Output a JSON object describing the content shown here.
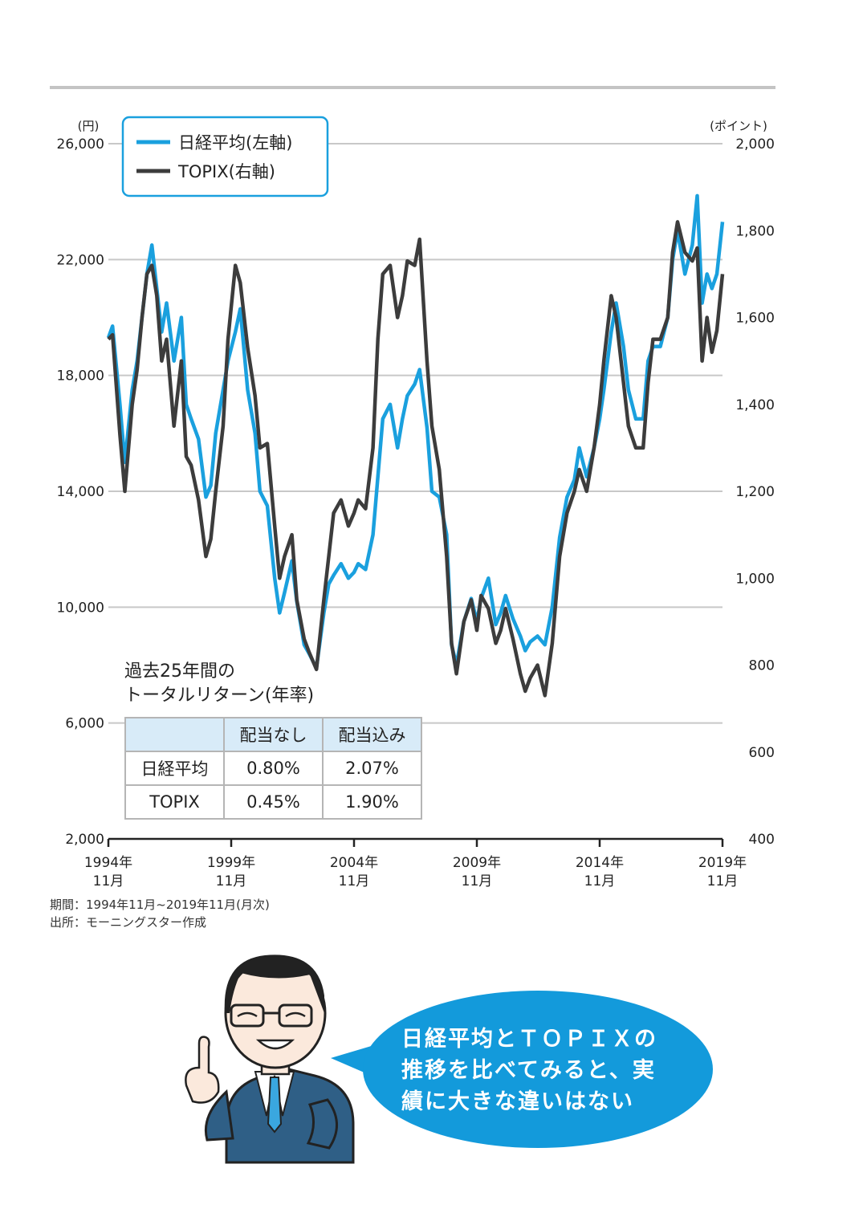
{
  "chart_data": {
    "type": "line",
    "left_axis": {
      "unit": "(円)",
      "ylim": [
        2000,
        26000
      ],
      "ticks": [
        "2,000",
        "6,000",
        "10,000",
        "14,000",
        "18,000",
        "22,000",
        "26,000"
      ],
      "tick_values": [
        2000,
        6000,
        10000,
        14000,
        18000,
        22000,
        26000
      ]
    },
    "right_axis": {
      "unit": "(ポイント)",
      "ylim": [
        400,
        2000
      ],
      "ticks": [
        "400",
        "600",
        "800",
        "1,000",
        "1,200",
        "1,400",
        "1,600",
        "1,800",
        "2,000"
      ],
      "tick_values": [
        400,
        600,
        800,
        1000,
        1200,
        1400,
        1600,
        1800,
        2000
      ]
    },
    "x_ticks": [
      {
        "year": "1994年",
        "month": "11月",
        "x": 1994.83
      },
      {
        "year": "1999年",
        "month": "11月",
        "x": 1999.83
      },
      {
        "year": "2004年",
        "month": "11月",
        "x": 2004.83
      },
      {
        "year": "2009年",
        "month": "11月",
        "x": 2009.83
      },
      {
        "year": "2014年",
        "month": "11月",
        "x": 2014.83
      },
      {
        "year": "2019年",
        "month": "11月",
        "x": 2019.83
      }
    ],
    "xlim": [
      1994.83,
      2019.83
    ],
    "grid": true,
    "legend_placement": "top-left",
    "series": [
      {
        "name": "日経平均(左軸)",
        "axis": "left",
        "color": "#1aa0de",
        "points": [
          [
            1994.83,
            19300
          ],
          [
            1995.0,
            19700
          ],
          [
            1995.3,
            17000
          ],
          [
            1995.5,
            15000
          ],
          [
            1995.8,
            17500
          ],
          [
            1996.0,
            18500
          ],
          [
            1996.2,
            20000
          ],
          [
            1996.4,
            21500
          ],
          [
            1996.6,
            22500
          ],
          [
            1996.8,
            21000
          ],
          [
            1997.0,
            19500
          ],
          [
            1997.2,
            20500
          ],
          [
            1997.5,
            18500
          ],
          [
            1997.8,
            20000
          ],
          [
            1998.0,
            17000
          ],
          [
            1998.2,
            16500
          ],
          [
            1998.5,
            15800
          ],
          [
            1998.8,
            13800
          ],
          [
            1999.0,
            14200
          ],
          [
            1999.2,
            16000
          ],
          [
            1999.5,
            17500
          ],
          [
            1999.7,
            18500
          ],
          [
            2000.0,
            19500
          ],
          [
            2000.2,
            20300
          ],
          [
            2000.5,
            17500
          ],
          [
            2000.8,
            16000
          ],
          [
            2001.0,
            14000
          ],
          [
            2001.3,
            13500
          ],
          [
            2001.6,
            11000
          ],
          [
            2001.8,
            9800
          ],
          [
            2002.0,
            10500
          ],
          [
            2002.3,
            11600
          ],
          [
            2002.5,
            10200
          ],
          [
            2002.8,
            8700
          ],
          [
            2003.0,
            8400
          ],
          [
            2003.3,
            7900
          ],
          [
            2003.6,
            9800
          ],
          [
            2003.8,
            10800
          ],
          [
            2004.0,
            11100
          ],
          [
            2004.3,
            11500
          ],
          [
            2004.6,
            11000
          ],
          [
            2004.83,
            11200
          ],
          [
            2005.0,
            11500
          ],
          [
            2005.3,
            11300
          ],
          [
            2005.6,
            12500
          ],
          [
            2005.8,
            14500
          ],
          [
            2006.0,
            16500
          ],
          [
            2006.3,
            17000
          ],
          [
            2006.6,
            15500
          ],
          [
            2006.8,
            16500
          ],
          [
            2007.0,
            17300
          ],
          [
            2007.3,
            17700
          ],
          [
            2007.5,
            18200
          ],
          [
            2007.8,
            16200
          ],
          [
            2008.0,
            14000
          ],
          [
            2008.3,
            13800
          ],
          [
            2008.6,
            12500
          ],
          [
            2008.8,
            8700
          ],
          [
            2009.0,
            8000
          ],
          [
            2009.3,
            9500
          ],
          [
            2009.6,
            10300
          ],
          [
            2009.83,
            9500
          ],
          [
            2010.0,
            10300
          ],
          [
            2010.3,
            11000
          ],
          [
            2010.6,
            9400
          ],
          [
            2010.8,
            9800
          ],
          [
            2011.0,
            10400
          ],
          [
            2011.3,
            9600
          ],
          [
            2011.6,
            9000
          ],
          [
            2011.8,
            8500
          ],
          [
            2012.0,
            8800
          ],
          [
            2012.3,
            9000
          ],
          [
            2012.6,
            8700
          ],
          [
            2012.9,
            10000
          ],
          [
            2013.2,
            12400
          ],
          [
            2013.5,
            13800
          ],
          [
            2013.8,
            14400
          ],
          [
            2014.0,
            15500
          ],
          [
            2014.3,
            14500
          ],
          [
            2014.6,
            15500
          ],
          [
            2014.83,
            16500
          ],
          [
            2015.0,
            17500
          ],
          [
            2015.3,
            19500
          ],
          [
            2015.5,
            20500
          ],
          [
            2015.8,
            19000
          ],
          [
            2016.0,
            17500
          ],
          [
            2016.3,
            16500
          ],
          [
            2016.6,
            16500
          ],
          [
            2016.8,
            18500
          ],
          [
            2017.0,
            19000
          ],
          [
            2017.3,
            19000
          ],
          [
            2017.6,
            20000
          ],
          [
            2017.8,
            22000
          ],
          [
            2018.0,
            23000
          ],
          [
            2018.3,
            21500
          ],
          [
            2018.6,
            22500
          ],
          [
            2018.8,
            24200
          ],
          [
            2019.0,
            20500
          ],
          [
            2019.2,
            21500
          ],
          [
            2019.4,
            21000
          ],
          [
            2019.6,
            21500
          ],
          [
            2019.83,
            23300
          ]
        ]
      },
      {
        "name": "TOPIX(右軸)",
        "axis": "right",
        "color": "#3c3c3c",
        "points": [
          [
            1994.83,
            1550
          ],
          [
            1995.0,
            1560
          ],
          [
            1995.3,
            1330
          ],
          [
            1995.5,
            1200
          ],
          [
            1995.8,
            1400
          ],
          [
            1996.0,
            1480
          ],
          [
            1996.2,
            1600
          ],
          [
            1996.4,
            1700
          ],
          [
            1996.6,
            1720
          ],
          [
            1996.8,
            1650
          ],
          [
            1997.0,
            1500
          ],
          [
            1997.2,
            1550
          ],
          [
            1997.5,
            1350
          ],
          [
            1997.8,
            1500
          ],
          [
            1998.0,
            1280
          ],
          [
            1998.2,
            1260
          ],
          [
            1998.5,
            1180
          ],
          [
            1998.8,
            1050
          ],
          [
            1999.0,
            1090
          ],
          [
            1999.2,
            1200
          ],
          [
            1999.5,
            1350
          ],
          [
            1999.7,
            1550
          ],
          [
            2000.0,
            1720
          ],
          [
            2000.2,
            1680
          ],
          [
            2000.5,
            1530
          ],
          [
            2000.8,
            1420
          ],
          [
            2001.0,
            1300
          ],
          [
            2001.3,
            1310
          ],
          [
            2001.6,
            1120
          ],
          [
            2001.8,
            1000
          ],
          [
            2002.0,
            1050
          ],
          [
            2002.3,
            1100
          ],
          [
            2002.5,
            950
          ],
          [
            2002.8,
            860
          ],
          [
            2003.0,
            830
          ],
          [
            2003.3,
            790
          ],
          [
            2003.6,
            950
          ],
          [
            2003.8,
            1050
          ],
          [
            2004.0,
            1150
          ],
          [
            2004.3,
            1180
          ],
          [
            2004.6,
            1120
          ],
          [
            2004.83,
            1150
          ],
          [
            2005.0,
            1180
          ],
          [
            2005.3,
            1160
          ],
          [
            2005.6,
            1300
          ],
          [
            2005.8,
            1550
          ],
          [
            2006.0,
            1700
          ],
          [
            2006.3,
            1720
          ],
          [
            2006.6,
            1600
          ],
          [
            2006.8,
            1650
          ],
          [
            2007.0,
            1730
          ],
          [
            2007.3,
            1720
          ],
          [
            2007.5,
            1780
          ],
          [
            2007.8,
            1500
          ],
          [
            2008.0,
            1350
          ],
          [
            2008.3,
            1250
          ],
          [
            2008.6,
            1050
          ],
          [
            2008.8,
            850
          ],
          [
            2009.0,
            780
          ],
          [
            2009.3,
            900
          ],
          [
            2009.6,
            950
          ],
          [
            2009.83,
            880
          ],
          [
            2010.0,
            960
          ],
          [
            2010.3,
            930
          ],
          [
            2010.6,
            850
          ],
          [
            2010.8,
            880
          ],
          [
            2011.0,
            930
          ],
          [
            2011.3,
            860
          ],
          [
            2011.6,
            780
          ],
          [
            2011.8,
            740
          ],
          [
            2012.0,
            770
          ],
          [
            2012.3,
            800
          ],
          [
            2012.6,
            730
          ],
          [
            2012.9,
            850
          ],
          [
            2013.2,
            1050
          ],
          [
            2013.5,
            1150
          ],
          [
            2013.8,
            1200
          ],
          [
            2014.0,
            1250
          ],
          [
            2014.3,
            1200
          ],
          [
            2014.6,
            1300
          ],
          [
            2014.83,
            1400
          ],
          [
            2015.0,
            1500
          ],
          [
            2015.3,
            1650
          ],
          [
            2015.5,
            1600
          ],
          [
            2015.8,
            1450
          ],
          [
            2016.0,
            1350
          ],
          [
            2016.3,
            1300
          ],
          [
            2016.6,
            1300
          ],
          [
            2016.8,
            1450
          ],
          [
            2017.0,
            1550
          ],
          [
            2017.3,
            1550
          ],
          [
            2017.6,
            1600
          ],
          [
            2017.8,
            1750
          ],
          [
            2018.0,
            1820
          ],
          [
            2018.3,
            1750
          ],
          [
            2018.6,
            1730
          ],
          [
            2018.8,
            1760
          ],
          [
            2019.0,
            1500
          ],
          [
            2019.2,
            1600
          ],
          [
            2019.4,
            1520
          ],
          [
            2019.6,
            1570
          ],
          [
            2019.83,
            1700
          ]
        ]
      }
    ]
  },
  "legend": {
    "nikkei": "日経平均(左軸)",
    "topix": "TOPIX(右軸)"
  },
  "returns": {
    "title_line1": "過去25年間の",
    "title_line2": "トータルリターン(年率)",
    "headers": [
      "",
      "配当なし",
      "配当込み"
    ],
    "rows": [
      {
        "name": "日経平均",
        "no_div": "0.80%",
        "with_div": "2.07%"
      },
      {
        "name": "TOPIX",
        "no_div": "0.45%",
        "with_div": "1.90%"
      }
    ]
  },
  "source": {
    "period": "期間：1994年11月~2019年11月(月次)",
    "origin": "出所：モーニングスター作成"
  },
  "bubble": {
    "line1": "日経平均とＴＯＰＩＸの",
    "line2": "推移を比べてみると、実",
    "line3": "績に大きな違いはない"
  },
  "colors": {
    "nikkei": "#1aa0de",
    "topix": "#3c3c3c",
    "bubble": "#139adb",
    "grid": "#c8c8c8",
    "header_bg": "#d8ebf8"
  }
}
